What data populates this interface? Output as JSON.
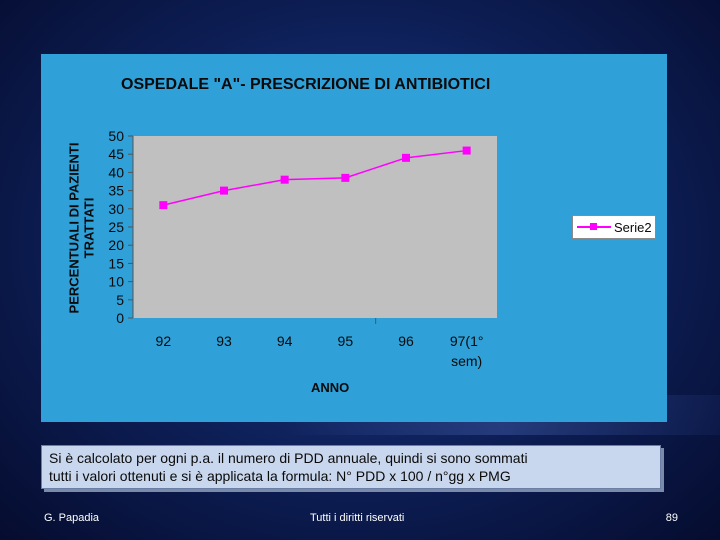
{
  "chart_data": {
    "type": "line",
    "title": "OSPEDALE \"A\"- PRESCRIZIONE DI ANTIBIOTICI",
    "xlabel": "ANNO",
    "ylabel_lines": [
      "PERCENTUALI DI PAZIENTI",
      "TRATTATI"
    ],
    "categories": [
      "92",
      "93",
      "94",
      "95",
      "96",
      "97(1° sem)"
    ],
    "category_lines": [
      [
        "92"
      ],
      [
        "93"
      ],
      [
        "94"
      ],
      [
        "95"
      ],
      [
        "96"
      ],
      [
        "97(1°",
        "sem)"
      ]
    ],
    "series": [
      {
        "name": "Serie2",
        "values": [
          31,
          35,
          38,
          38.5,
          44,
          46
        ]
      }
    ],
    "ylim": [
      0,
      50
    ],
    "yticks": [
      0,
      5,
      10,
      15,
      20,
      25,
      30,
      35,
      40,
      45,
      50
    ],
    "grid": false,
    "legend_position": "right",
    "colors": {
      "series": "#ff00ff",
      "plot_background": "#c0c0c0",
      "panel_background": "#2fa0d8"
    }
  },
  "note": {
    "line1": "Si è calcolato per ogni p.a. il numero di PDD annuale, quindi si sono sommati",
    "line2": "tutti i valori ottenuti e si è applicata la formula:  N° PDD x 100 / n°gg x PMG"
  },
  "footer": {
    "author": "G. Papadia",
    "rights": "Tutti i diritti riservati",
    "page_number": "89"
  }
}
